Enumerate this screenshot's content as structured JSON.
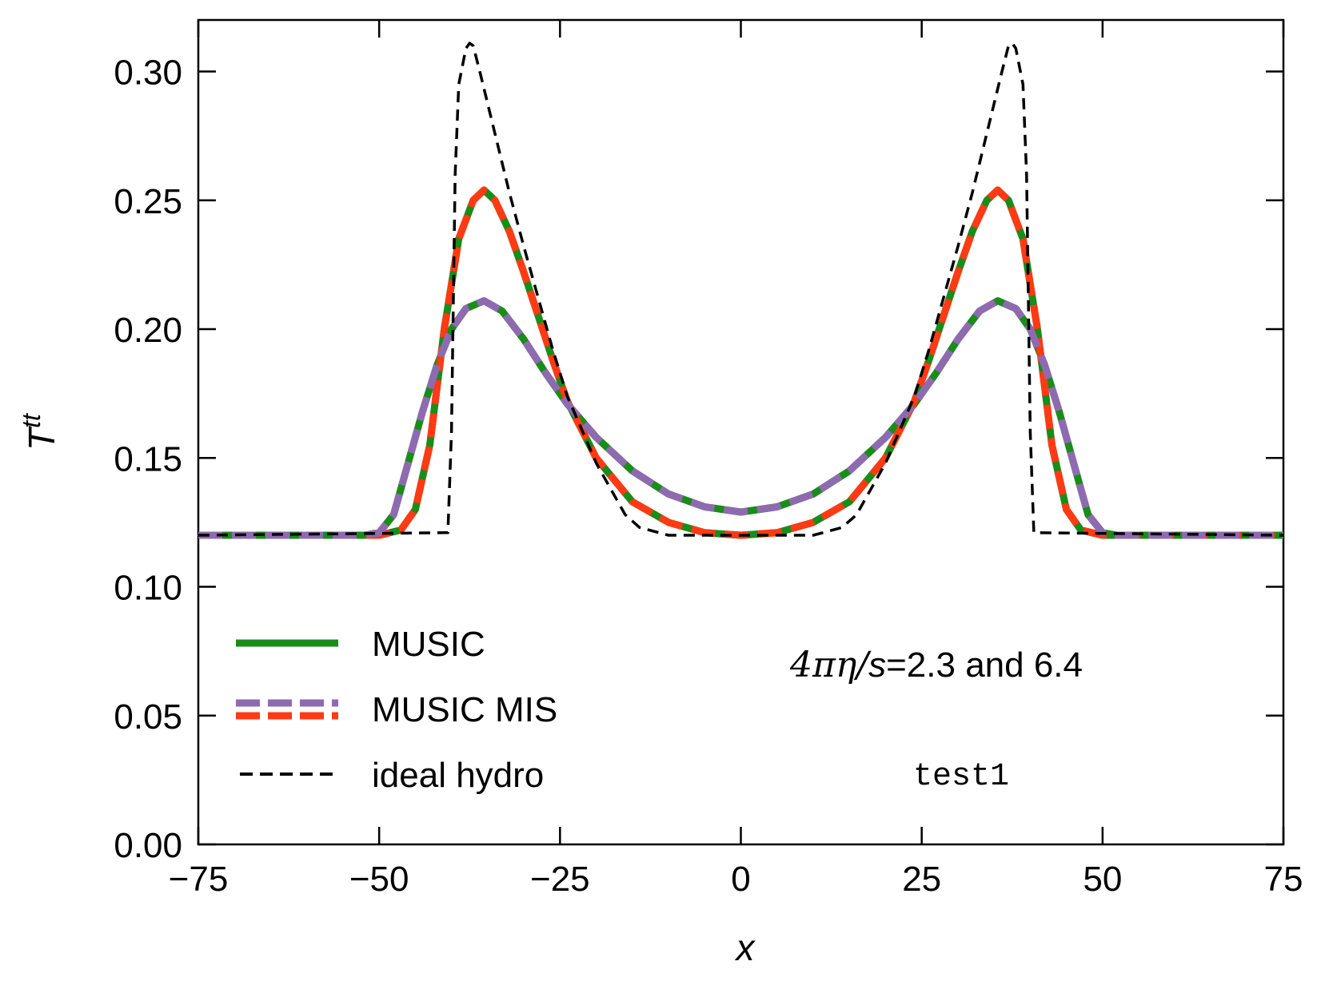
{
  "chart_data": {
    "type": "line",
    "xlabel": "x",
    "ylabel": "T",
    "ylabel_superscript": "tt",
    "xlim": [
      -75,
      75
    ],
    "ylim": [
      0.0,
      0.32
    ],
    "xticks": [
      -75,
      -50,
      -25,
      0,
      25,
      50,
      75
    ],
    "xtick_labels": [
      "−75",
      "−50",
      "−25",
      "0",
      "25",
      "50",
      "75"
    ],
    "yticks": [
      0.0,
      0.05,
      0.1,
      0.15,
      0.2,
      0.25,
      0.3
    ],
    "ytick_labels": [
      "0.00",
      "0.05",
      "0.10",
      "0.15",
      "0.20",
      "0.25",
      "0.30"
    ],
    "grid": false,
    "legend_position": "bottom-left",
    "legend": [
      {
        "label": "MUSIC",
        "style": "solid",
        "colors": [
          "#1a8c1a"
        ]
      },
      {
        "label": "MUSIC MIS",
        "style": "dashed",
        "colors": [
          "#8e6bb0",
          "#ff3a14"
        ]
      },
      {
        "label": "ideal hydro",
        "style": "dashed",
        "colors": [
          "#000000"
        ]
      }
    ],
    "annotations": {
      "eta_over_s": {
        "prefix": "4πη/",
        "var": "s",
        "suffix": "=2.3 and 6.4"
      },
      "test_label": "test1"
    },
    "series": [
      {
        "name": "MUSIC (4πη/s=2.3)",
        "style": "solid",
        "color": "#1a8c1a",
        "x": [
          -75,
          -50,
          -47,
          -45,
          -43,
          -41,
          -39,
          -37,
          -35.5,
          -34,
          -32,
          -30,
          -28,
          -26,
          -24,
          -20,
          -15,
          -10,
          -5,
          0,
          5,
          10,
          15,
          20,
          24,
          26,
          28,
          30,
          32,
          34,
          35.5,
          37,
          39,
          41,
          43,
          45,
          47,
          50,
          75
        ],
        "y": [
          0.12,
          0.12,
          0.122,
          0.13,
          0.155,
          0.2,
          0.235,
          0.25,
          0.254,
          0.25,
          0.238,
          0.222,
          0.205,
          0.188,
          0.172,
          0.15,
          0.133,
          0.125,
          0.121,
          0.12,
          0.121,
          0.125,
          0.133,
          0.15,
          0.172,
          0.188,
          0.205,
          0.222,
          0.238,
          0.25,
          0.254,
          0.25,
          0.235,
          0.2,
          0.155,
          0.13,
          0.122,
          0.12,
          0.12
        ]
      },
      {
        "name": "MUSIC (4πη/s=6.4)",
        "style": "solid",
        "color": "#1a8c1a",
        "x": [
          -75,
          -52,
          -50,
          -48,
          -46,
          -44,
          -42,
          -40,
          -38,
          -35.5,
          -33,
          -30,
          -27,
          -24,
          -20,
          -15,
          -10,
          -5,
          0,
          5,
          10,
          15,
          20,
          24,
          27,
          30,
          33,
          35.5,
          38,
          40,
          42,
          44,
          46,
          48,
          50,
          52,
          75
        ],
        "y": [
          0.12,
          0.12,
          0.121,
          0.128,
          0.148,
          0.168,
          0.186,
          0.2,
          0.208,
          0.211,
          0.207,
          0.196,
          0.183,
          0.171,
          0.158,
          0.145,
          0.136,
          0.131,
          0.129,
          0.131,
          0.136,
          0.145,
          0.158,
          0.171,
          0.183,
          0.196,
          0.207,
          0.211,
          0.208,
          0.2,
          0.186,
          0.168,
          0.148,
          0.128,
          0.121,
          0.12,
          0.12
        ]
      },
      {
        "name": "MUSIC MIS (4πη/s=2.3)",
        "style": "dashed",
        "color": "#ff3a14",
        "x": [
          -75,
          -50,
          -47,
          -45,
          -43,
          -41,
          -39,
          -37,
          -35.5,
          -34,
          -32,
          -30,
          -28,
          -26,
          -24,
          -20,
          -15,
          -10,
          -5,
          0,
          5,
          10,
          15,
          20,
          24,
          26,
          28,
          30,
          32,
          34,
          35.5,
          37,
          39,
          41,
          43,
          45,
          47,
          50,
          75
        ],
        "y": [
          0.12,
          0.12,
          0.122,
          0.13,
          0.155,
          0.2,
          0.235,
          0.25,
          0.254,
          0.25,
          0.238,
          0.222,
          0.205,
          0.188,
          0.172,
          0.15,
          0.133,
          0.125,
          0.121,
          0.12,
          0.121,
          0.125,
          0.133,
          0.15,
          0.172,
          0.188,
          0.205,
          0.222,
          0.238,
          0.25,
          0.254,
          0.25,
          0.235,
          0.2,
          0.155,
          0.13,
          0.122,
          0.12,
          0.12
        ]
      },
      {
        "name": "MUSIC MIS (4πη/s=6.4)",
        "style": "dashed",
        "color": "#8e6bb0",
        "x": [
          -75,
          -52,
          -50,
          -48,
          -46,
          -44,
          -42,
          -40,
          -38,
          -35.5,
          -33,
          -30,
          -27,
          -24,
          -20,
          -15,
          -10,
          -5,
          0,
          5,
          10,
          15,
          20,
          24,
          27,
          30,
          33,
          35.5,
          38,
          40,
          42,
          44,
          46,
          48,
          50,
          52,
          75
        ],
        "y": [
          0.12,
          0.12,
          0.121,
          0.128,
          0.148,
          0.168,
          0.186,
          0.2,
          0.208,
          0.211,
          0.207,
          0.196,
          0.183,
          0.171,
          0.158,
          0.145,
          0.136,
          0.131,
          0.129,
          0.131,
          0.136,
          0.145,
          0.158,
          0.171,
          0.183,
          0.196,
          0.207,
          0.211,
          0.208,
          0.2,
          0.186,
          0.168,
          0.148,
          0.128,
          0.121,
          0.12,
          0.12
        ]
      },
      {
        "name": "ideal hydro",
        "style": "dashed",
        "color": "#000000",
        "x": [
          -75,
          -40.5,
          -40,
          -39.5,
          -39,
          -38,
          -37.5,
          -37,
          -36,
          -34,
          -32,
          -30,
          -28,
          -26,
          -24,
          -20,
          -16,
          -14,
          -10,
          -5,
          0,
          5,
          10,
          14,
          16,
          20,
          24,
          26,
          28,
          30,
          32,
          34,
          36,
          37,
          37.5,
          38,
          39,
          39.5,
          40,
          40.5,
          75
        ],
        "y": [
          0.12,
          0.121,
          0.16,
          0.26,
          0.295,
          0.309,
          0.311,
          0.31,
          0.299,
          0.276,
          0.253,
          0.232,
          0.212,
          0.192,
          0.174,
          0.148,
          0.128,
          0.123,
          0.12,
          0.12,
          0.12,
          0.12,
          0.12,
          0.123,
          0.128,
          0.148,
          0.174,
          0.192,
          0.212,
          0.232,
          0.253,
          0.276,
          0.299,
          0.31,
          0.311,
          0.309,
          0.295,
          0.26,
          0.16,
          0.121,
          0.12
        ]
      }
    ]
  }
}
